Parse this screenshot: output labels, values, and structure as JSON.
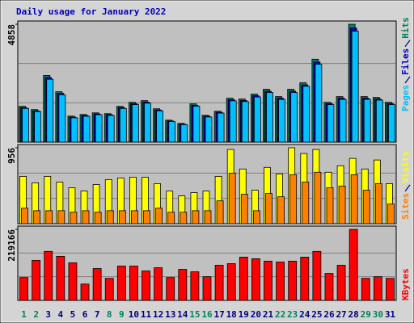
{
  "chart_data": [
    {
      "type": "bar",
      "title": "Daily usage for January 2022",
      "series": [
        {
          "name": "Hits",
          "color": "#00805c",
          "values": [
            1474,
            1340,
            2747,
            2077,
            1072,
            1139,
            1206,
            1173,
            1474,
            1642,
            1709,
            1374,
            905,
            771,
            1575,
            1106,
            1273,
            1809,
            1776,
            1977,
            2178,
            1876,
            2178,
            2446,
            3417,
            1642,
            1876,
            4858,
            1876,
            1843,
            1642
          ]
        },
        {
          "name": "Files",
          "color": "#0000c0",
          "values": [
            1420,
            1290,
            2660,
            2010,
            1030,
            1095,
            1160,
            1130,
            1420,
            1585,
            1650,
            1325,
            870,
            740,
            1520,
            1065,
            1230,
            1745,
            1715,
            1910,
            2100,
            1810,
            2100,
            2360,
            3300,
            1585,
            1810,
            4700,
            1810,
            1780,
            1585
          ]
        },
        {
          "name": "Pages",
          "color": "#00c0ff",
          "values": [
            1385,
            1260,
            2590,
            1950,
            1000,
            1065,
            1130,
            1100,
            1385,
            1545,
            1605,
            1290,
            845,
            720,
            1480,
            1035,
            1195,
            1700,
            1670,
            1860,
            2045,
            1760,
            2045,
            2300,
            3210,
            1545,
            1760,
            4570,
            1760,
            1730,
            1545
          ]
        }
      ],
      "ylim": [
        0,
        4858
      ],
      "yticks": [
        4858
      ]
    },
    {
      "type": "bar",
      "series": [
        {
          "name": "Visits",
          "color": "#ffff00",
          "values": [
            596,
            514,
            596,
            524,
            452,
            411,
            493,
            555,
            576,
            586,
            586,
            504,
            411,
            350,
            391,
            411,
            596,
            935,
            689,
            421,
            709,
            627,
            956,
            884,
            935,
            648,
            730,
            822,
            689,
            802,
            504
          ]
        },
        {
          "name": "Sites",
          "color": "#ff8000",
          "values": [
            195,
            164,
            164,
            164,
            144,
            164,
            144,
            164,
            164,
            164,
            164,
            195,
            144,
            144,
            164,
            164,
            288,
            637,
            370,
            164,
            380,
            339,
            617,
            524,
            648,
            452,
            473,
            617,
            421,
            504,
            247
          ]
        }
      ],
      "ylim": [
        0,
        956
      ],
      "yticks": [
        956
      ]
    },
    {
      "type": "bar",
      "categories": [
        "1",
        "2",
        "3",
        "4",
        "5",
        "6",
        "7",
        "8",
        "9",
        "10",
        "11",
        "12",
        "13",
        "14",
        "15",
        "16",
        "17",
        "18",
        "19",
        "20",
        "21",
        "22",
        "23",
        "24",
        "25",
        "26",
        "27",
        "28",
        "29",
        "30",
        "31"
      ],
      "category_colors": [
        "#00805c",
        "#00805c",
        "#000080",
        "#000080",
        "#000080",
        "#000080",
        "#000080",
        "#00805c",
        "#00805c",
        "#000080",
        "#000080",
        "#000080",
        "#000080",
        "#000080",
        "#00805c",
        "#00805c",
        "#000080",
        "#000080",
        "#000080",
        "#000080",
        "#000080",
        "#00805c",
        "#00805c",
        "#000080",
        "#000080",
        "#000080",
        "#000080",
        "#000080",
        "#00805c",
        "#00805c",
        "#000080"
      ],
      "series": [
        {
          "name": "KBytes",
          "color": "#ff0000",
          "values": [
            70532,
            123431,
            151140,
            136026,
            115874,
            50380,
            98241,
            68013,
            105798,
            105798,
            90684,
            100760,
            70532,
            95722,
            88165,
            73051,
            108317,
            113355,
            133507,
            128469,
            120912,
            118393,
            120912,
            133507,
            151140,
            83127,
            108317,
            219166,
            68013,
            73051,
            68013
          ]
        }
      ],
      "ylim": [
        0,
        219166
      ],
      "yticks": [
        219166
      ]
    }
  ]
}
